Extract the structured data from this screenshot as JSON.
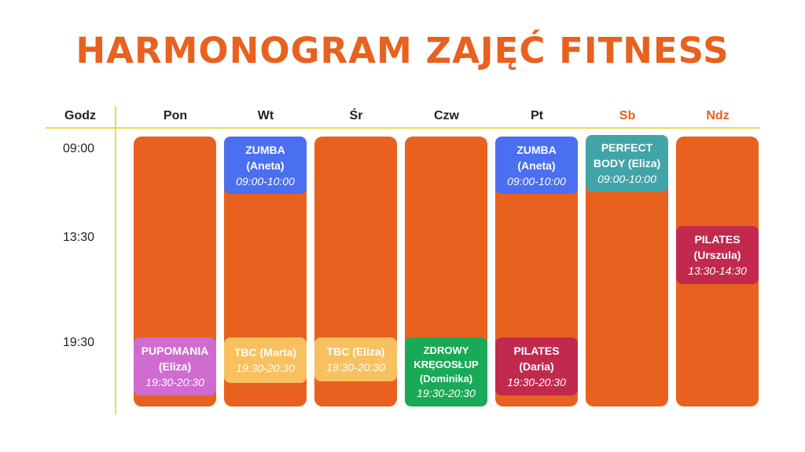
{
  "title": "HARMONOGRAM ZAJĘĆ FITNESS",
  "colors": {
    "title": "#e8611f",
    "column": "#e8611f",
    "grid_line": "#e9db4a",
    "weekend_header": "#e8611f",
    "zumba": "#4a6ff0",
    "perfect_body": "#41a4a8",
    "pilates": "#c1294e",
    "pupomania": "#d06bd0",
    "tbc": "#f8c05f",
    "zdrowy": "#1aaa57"
  },
  "header": {
    "hours_label": "Godz",
    "days": [
      "Pon",
      "Wt",
      "Śr",
      "Czw",
      "Pt",
      "Sb",
      "Ndz"
    ]
  },
  "times": [
    "09:00",
    "13:30",
    "19:30"
  ],
  "events": [
    {
      "day": "Wt",
      "name": "ZUMBA (Aneta)",
      "time": "09:00-10:00"
    },
    {
      "day": "Pt",
      "name": "ZUMBA (Aneta)",
      "time": "09:00-10:00"
    },
    {
      "day": "Sb",
      "name": "PERFECT BODY (Eliza)",
      "time": "09:00-10:00"
    },
    {
      "day": "Ndz",
      "name": "PILATES (Urszula)",
      "time": "13:30-14:30"
    },
    {
      "day": "Pon",
      "name": "PUPOMANIA (Eliza)",
      "time": "19:30-20:30"
    },
    {
      "day": "Wt",
      "name": "TBC (Marta)",
      "time": "19:30-20:30"
    },
    {
      "day": "Śr",
      "name": "TBC (Eliza)",
      "time": "19:30-20:30"
    },
    {
      "day": "Czw",
      "name": "ZDROWY KRĘGOSŁUP (Dominika)",
      "time": "19:30-20:30"
    },
    {
      "day": "Pt",
      "name": "PILATES (Daria)",
      "time": "19:30-20:30"
    }
  ]
}
